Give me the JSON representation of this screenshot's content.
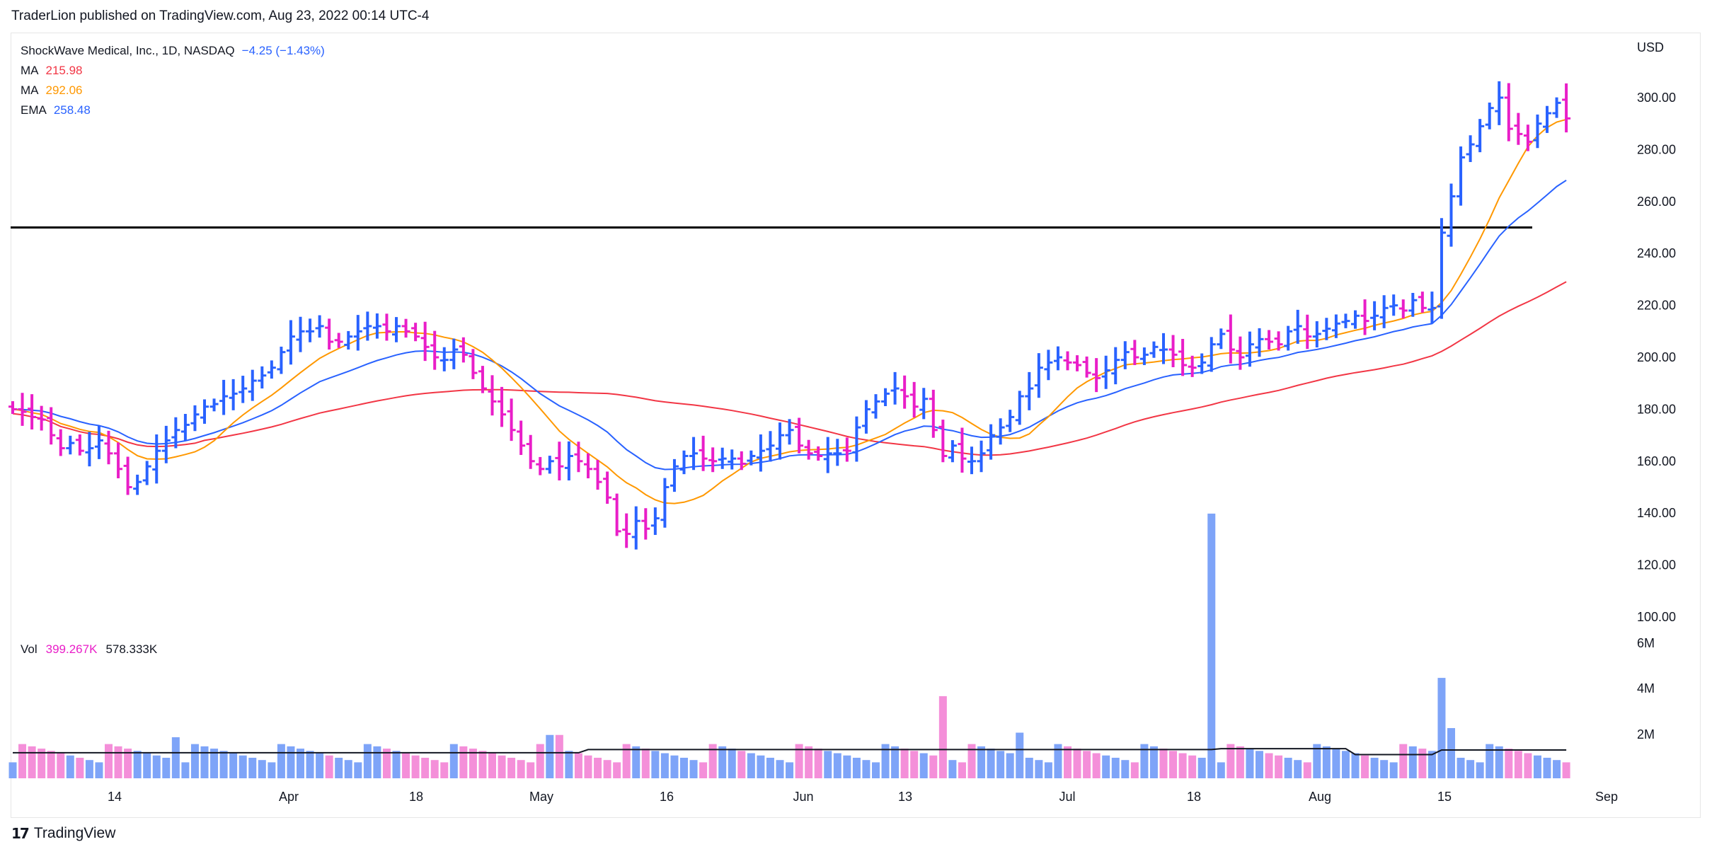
{
  "header": {
    "publish_line": "TraderLion published on TradingView.com, Aug 23, 2022 00:14 UTC-4"
  },
  "legend": {
    "symbol": "ShockWave Medical, Inc., 1D, NASDAQ",
    "change": "−4.25 (−1.43%)",
    "indicators": [
      {
        "label": "MA",
        "value": "215.98",
        "color": "#f23645"
      },
      {
        "label": "MA",
        "value": "292.06",
        "color": "#ff9800"
      },
      {
        "label": "EMA",
        "value": "258.48",
        "color": "#2962ff"
      }
    ]
  },
  "volume_legend": {
    "label": "Vol",
    "value": "399.267K",
    "ma_value": "578.333K"
  },
  "footer": {
    "brand": "TradingView",
    "logo": "17"
  },
  "chart_data": {
    "type": "ohlc",
    "currency": "USD",
    "y_ticks": [
      "300.00",
      "280.00",
      "260.00",
      "240.00",
      "220.00",
      "200.00",
      "180.00",
      "160.00",
      "140.00",
      "120.00",
      "100.00"
    ],
    "y_range": [
      100,
      300
    ],
    "vol_ticks": [
      "6M",
      "4M",
      "2M"
    ],
    "x_ticks": [
      "14",
      "Apr",
      "18",
      "May",
      "16",
      "Jun",
      "13",
      "Jul",
      "18",
      "Aug",
      "15",
      "Sep"
    ],
    "horizontal_line": 250,
    "colors": {
      "up": "#2962ff",
      "down": "#e91ec8",
      "vol_up": "#7ea4f8",
      "vol_down": "#f48fd9"
    },
    "closes": [
      180,
      179,
      177,
      176,
      170,
      165,
      167,
      164,
      165,
      168,
      163,
      157,
      150,
      152,
      158,
      164,
      168,
      172,
      174,
      178,
      181,
      182,
      185,
      186,
      188,
      191,
      193,
      196,
      202,
      208,
      210,
      210,
      212,
      206,
      206,
      208,
      210,
      212,
      212,
      210,
      212,
      210,
      208,
      204,
      200,
      199,
      203,
      201,
      194,
      188,
      183,
      178,
      172,
      166,
      160,
      157,
      160,
      158,
      162,
      160,
      157,
      152,
      146,
      133,
      132,
      137,
      134,
      138,
      150,
      158,
      162,
      163,
      161,
      160,
      161,
      161,
      159,
      162,
      164,
      166,
      170,
      172,
      166,
      163,
      162,
      163,
      163,
      164,
      173,
      180,
      183,
      186,
      188,
      185,
      181,
      184,
      172,
      162,
      166,
      161,
      160,
      163,
      170,
      173,
      177,
      185,
      188,
      196,
      198,
      200,
      198,
      197,
      194,
      192,
      195,
      199,
      202,
      200,
      201,
      204,
      203,
      201,
      197,
      196,
      198,
      205,
      209,
      203,
      200,
      205,
      207,
      206,
      205,
      210,
      212,
      208,
      209,
      211,
      213,
      214,
      216,
      214,
      216,
      219,
      220,
      218,
      222,
      219,
      219,
      248,
      262,
      277,
      282,
      289,
      296,
      300,
      288,
      286,
      283,
      290,
      294,
      298,
      292
    ]
  }
}
